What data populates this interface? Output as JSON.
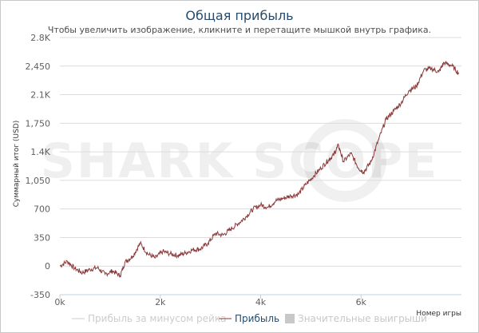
{
  "chart_data": {
    "type": "line",
    "title": "Общая прибыль",
    "subtitle": "Чтобы увеличить изображение, кликните и перетащите мышкой внутрь графика.",
    "ylabel": "Суммарный итог (USD)",
    "xlabel": "Номер игры",
    "ylim": [
      -350,
      2800
    ],
    "xlim": [
      0,
      8000
    ],
    "y_ticks": [
      -350,
      0,
      350,
      700,
      1050,
      1400,
      1750,
      2100,
      2450,
      2800
    ],
    "y_tick_labels": [
      "-350",
      "0",
      "350",
      "700",
      "1,050",
      "1.4K",
      "1,750",
      "2.1K",
      "2,450",
      "2.8K"
    ],
    "x_ticks": [
      0,
      2000,
      4000,
      6000
    ],
    "x_tick_labels": [
      "0k",
      "2k",
      "4k",
      "6k"
    ],
    "grid": true,
    "legend_position": "bottom",
    "watermark": "SHARK SCOPE",
    "series": [
      {
        "name": "Прибыль",
        "color": "#8b3a3a",
        "x": [
          0,
          150,
          300,
          450,
          600,
          750,
          900,
          1050,
          1200,
          1300,
          1450,
          1600,
          1750,
          1900,
          2050,
          2200,
          2350,
          2500,
          2650,
          2800,
          2950,
          3100,
          3250,
          3400,
          3550,
          3700,
          3850,
          4000,
          4150,
          4300,
          4450,
          4600,
          4750,
          4900,
          5050,
          5200,
          5350,
          5450,
          5550,
          5650,
          5800,
          5950,
          6050,
          6200,
          6350,
          6500,
          6650,
          6800,
          6950,
          7100,
          7250,
          7400,
          7550,
          7650,
          7800,
          7950
        ],
        "y": [
          0,
          60,
          -30,
          -80,
          -40,
          -20,
          -100,
          -60,
          -120,
          50,
          120,
          280,
          150,
          100,
          180,
          150,
          130,
          160,
          200,
          210,
          280,
          400,
          380,
          450,
          520,
          600,
          700,
          750,
          720,
          800,
          830,
          860,
          880,
          1000,
          1100,
          1200,
          1300,
          1360,
          1480,
          1280,
          1380,
          1200,
          1150,
          1280,
          1550,
          1800,
          1900,
          2000,
          2150,
          2200,
          2400,
          2420,
          2380,
          2490,
          2460,
          2360
        ]
      },
      {
        "name": "Прибыль за минусом рейка",
        "color": "#cfcfcf",
        "visible": false
      },
      {
        "name": "Значительные выигрыши",
        "color": "#c0c0c0",
        "visible": false
      }
    ]
  },
  "legend": {
    "item_1": "Прибыль за минусом рейка",
    "item_2": "Прибыль",
    "item_3": "Значительные выигрыши"
  }
}
